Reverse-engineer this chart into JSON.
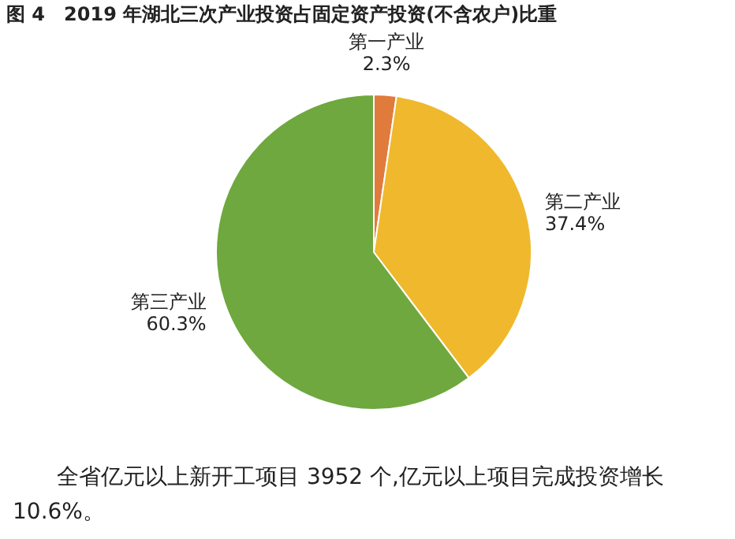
{
  "chart_data": {
    "type": "pie",
    "title": "图 4　2019 年湖北三次产业投资占固定资产投资(不含农户)比重",
    "categories": [
      "第一产业",
      "第二产业",
      "第三产业"
    ],
    "values": [
      2.3,
      37.4,
      60.3
    ],
    "colors": [
      "#e07b3c",
      "#f0b82c",
      "#6ea83e"
    ],
    "value_labels": [
      "2.3%",
      "37.4%",
      "60.3%"
    ],
    "annotations": [
      "全省亿元以上新开工项目 3952 个,亿元以上项目完成投资增长 10.6%。"
    ]
  }
}
